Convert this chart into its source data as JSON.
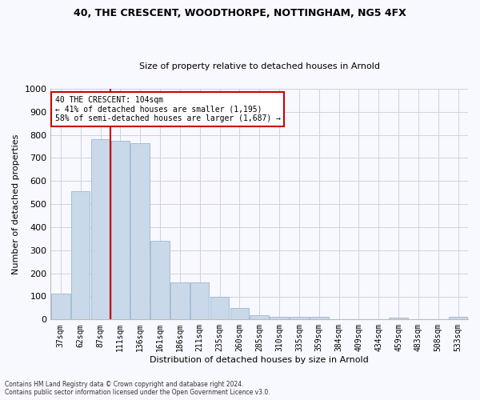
{
  "title": "40, THE CRESCENT, WOODTHORPE, NOTTINGHAM, NG5 4FX",
  "subtitle": "Size of property relative to detached houses in Arnold",
  "xlabel": "Distribution of detached houses by size in Arnold",
  "ylabel": "Number of detached properties",
  "categories": [
    "37sqm",
    "62sqm",
    "87sqm",
    "111sqm",
    "136sqm",
    "161sqm",
    "186sqm",
    "211sqm",
    "235sqm",
    "260sqm",
    "285sqm",
    "310sqm",
    "335sqm",
    "359sqm",
    "384sqm",
    "409sqm",
    "434sqm",
    "459sqm",
    "483sqm",
    "508sqm",
    "533sqm"
  ],
  "values": [
    112,
    555,
    780,
    775,
    765,
    340,
    160,
    160,
    97,
    50,
    20,
    12,
    10,
    10,
    0,
    0,
    0,
    7,
    0,
    0,
    10
  ],
  "bar_color": "#c9d9ea",
  "bar_edge_color": "#9ab8d0",
  "vline_color": "#cc0000",
  "vline_pos": 2.5,
  "annotation_text": "40 THE CRESCENT: 104sqm\n← 41% of detached houses are smaller (1,195)\n58% of semi-detached houses are larger (1,687) →",
  "annotation_box_color": "#ffffff",
  "annotation_box_edge": "#cc0000",
  "ylim": [
    0,
    1000
  ],
  "yticks": [
    0,
    100,
    200,
    300,
    400,
    500,
    600,
    700,
    800,
    900,
    1000
  ],
  "footnote": "Contains HM Land Registry data © Crown copyright and database right 2024.\nContains public sector information licensed under the Open Government Licence v3.0.",
  "bg_color": "#f8f8ff",
  "grid_color": "#d0d0e0",
  "title_fontsize": 9,
  "subtitle_fontsize": 8,
  "ylabel_fontsize": 8,
  "xlabel_fontsize": 8,
  "tick_fontsize": 7,
  "annot_fontsize": 7
}
